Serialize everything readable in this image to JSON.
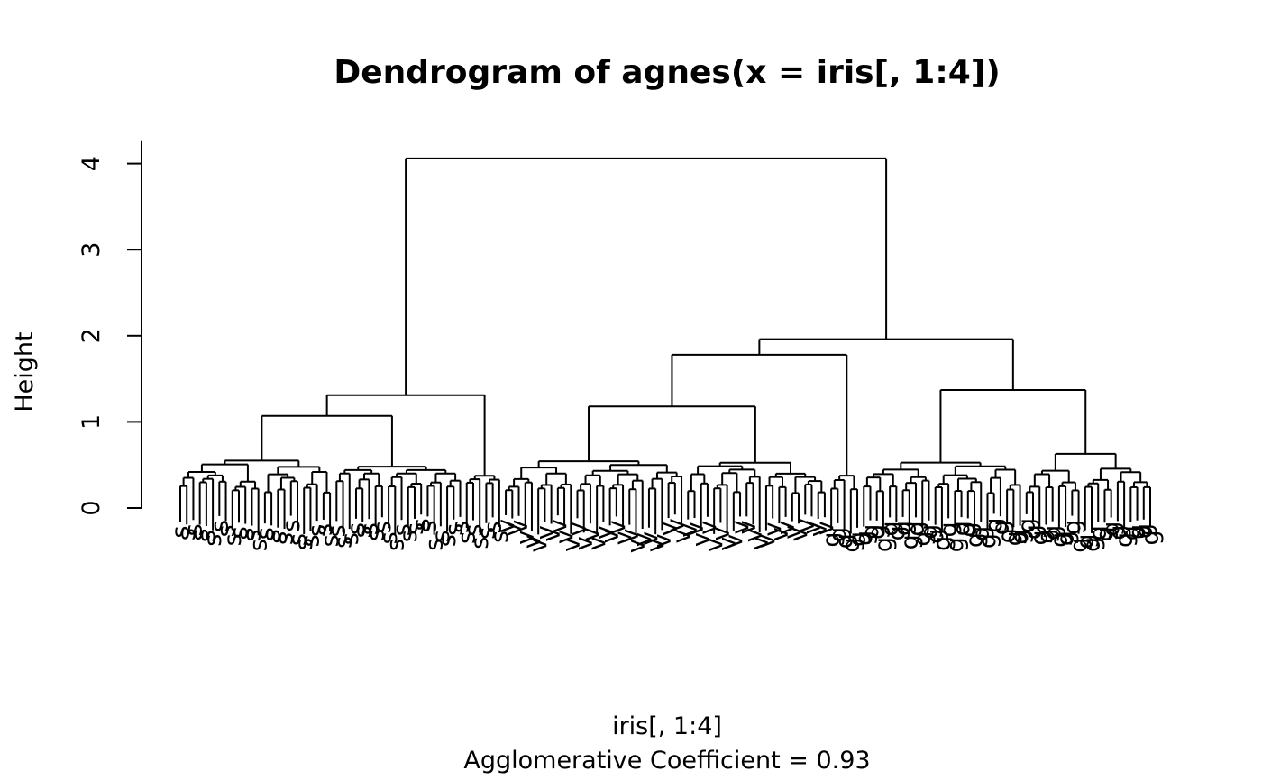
{
  "chart_data": {
    "type": "dendrogram",
    "title": "Dendrogram of  agnes(x = iris[, 1:4])",
    "xlabel": "iris[, 1:4]",
    "sub": "Agglomerative Coefficient =  0.93",
    "ylabel": "Height",
    "yticks": [
      "0",
      "1",
      "2",
      "3",
      "4"
    ],
    "ylim": [
      0,
      4
    ],
    "leaf_groups": [
      {
        "label": "s",
        "count": 50
      },
      {
        "label": "v",
        "count": 50
      },
      {
        "label": "g",
        "count": 50
      }
    ],
    "merges_major": [
      {
        "height": 4.06,
        "left": "setosa",
        "right": "versicolor+virginica"
      },
      {
        "height": 1.96,
        "left": "versicolor group",
        "right": "virginica group"
      },
      {
        "height": 1.78,
        "left": "versicolor subcluster",
        "right": "mixed subcluster"
      },
      {
        "height": 1.37,
        "left": "virginica subclusters",
        "right": "virginica subclusters"
      },
      {
        "height": 1.31,
        "left": "setosa",
        "right": "setosa outliers"
      },
      {
        "height": 1.18,
        "left": "versicolor",
        "right": "versicolor"
      },
      {
        "height": 1.07,
        "left": "setosa",
        "right": "setosa"
      }
    ]
  }
}
